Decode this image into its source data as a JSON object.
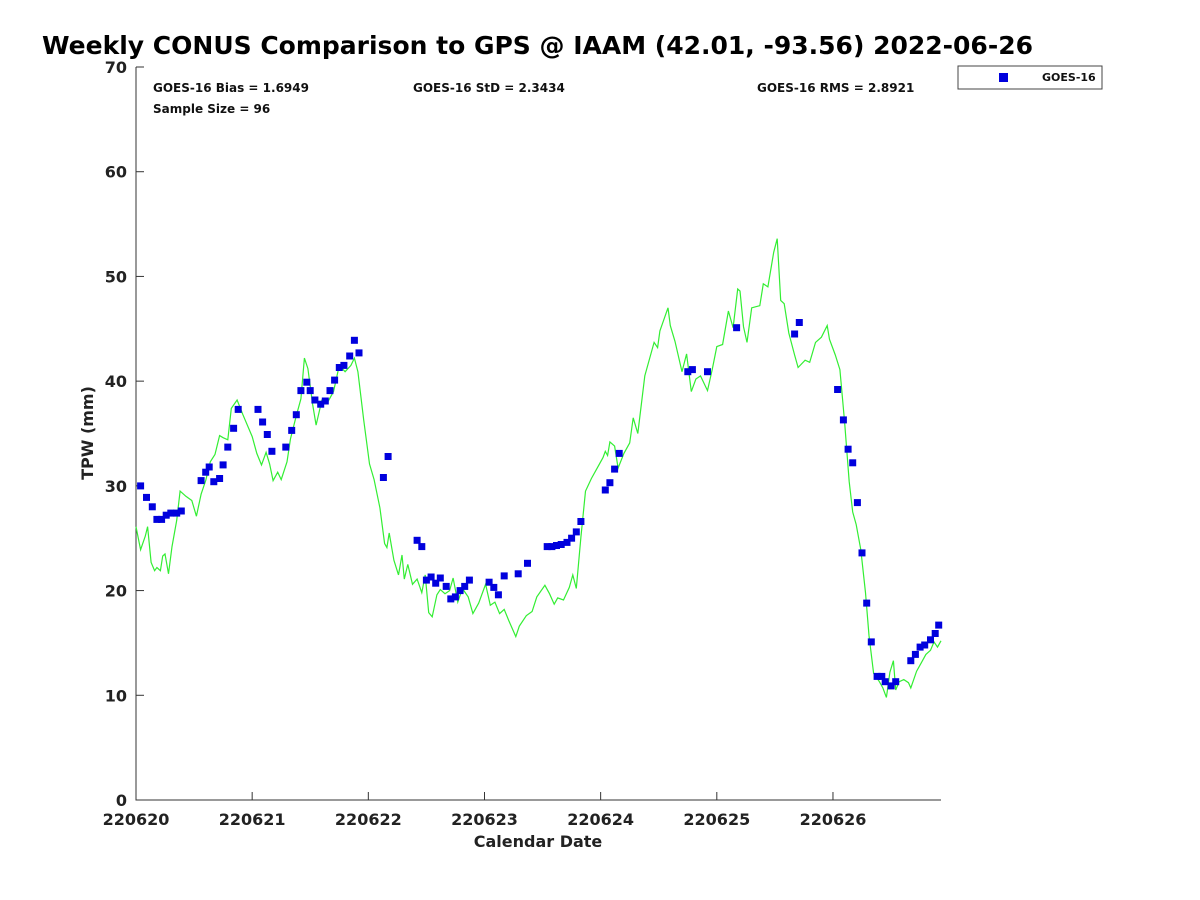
{
  "chart_data": {
    "type": "scatter",
    "title": "Weekly CONUS Comparison to GPS @ IAAM (42.01, -93.56) 2022-06-26",
    "xlabel": "Calendar Date",
    "ylabel": "TPW (mm)",
    "xlim": [
      220620,
      220626.93
    ],
    "ylim": [
      0,
      70
    ],
    "x_ticks": [
      220620,
      220621,
      220622,
      220623,
      220624,
      220625,
      220626
    ],
    "x_tick_labels": [
      "220620",
      "220621",
      "220622",
      "220623",
      "220624",
      "220625",
      "220626"
    ],
    "y_ticks": [
      0,
      10,
      20,
      30,
      40,
      50,
      60,
      70
    ],
    "y_tick_labels": [
      "0",
      "10",
      "20",
      "30",
      "40",
      "50",
      "60",
      "70"
    ],
    "grid": false,
    "legend_position": "top-right-outside",
    "stats": {
      "bias": "GOES-16 Bias = 1.6949",
      "std": "GOES-16 StD = 2.3434",
      "rms": "GOES-16 RMS = 2.8921",
      "sample": "Sample Size = 96"
    },
    "series": [
      {
        "name": "GOES-16",
        "kind": "scatter",
        "color": "#0000dd",
        "marker": "square",
        "points": [
          [
            220620.04,
            30.0
          ],
          [
            220620.09,
            28.9
          ],
          [
            220620.14,
            28.0
          ],
          [
            220620.18,
            26.8
          ],
          [
            220620.22,
            26.8
          ],
          [
            220620.26,
            27.2
          ],
          [
            220620.3,
            27.4
          ],
          [
            220620.35,
            27.4
          ],
          [
            220620.39,
            27.6
          ],
          [
            220620.56,
            30.5
          ],
          [
            220620.6,
            31.3
          ],
          [
            220620.63,
            31.8
          ],
          [
            220620.67,
            30.4
          ],
          [
            220620.72,
            30.7
          ],
          [
            220620.75,
            32.0
          ],
          [
            220620.79,
            33.7
          ],
          [
            220620.84,
            35.5
          ],
          [
            220620.88,
            37.3
          ],
          [
            220621.05,
            37.3
          ],
          [
            220621.09,
            36.1
          ],
          [
            220621.13,
            34.9
          ],
          [
            220621.17,
            33.3
          ],
          [
            220621.29,
            33.7
          ],
          [
            220621.34,
            35.3
          ],
          [
            220621.38,
            36.8
          ],
          [
            220621.42,
            39.1
          ],
          [
            220621.47,
            39.9
          ],
          [
            220621.5,
            39.1
          ],
          [
            220621.54,
            38.2
          ],
          [
            220621.59,
            37.8
          ],
          [
            220621.63,
            38.1
          ],
          [
            220621.67,
            39.1
          ],
          [
            220621.71,
            40.1
          ],
          [
            220621.75,
            41.3
          ],
          [
            220621.79,
            41.5
          ],
          [
            220621.84,
            42.4
          ],
          [
            220621.88,
            43.9
          ],
          [
            220621.92,
            42.7
          ],
          [
            220622.13,
            30.8
          ],
          [
            220622.17,
            32.8
          ],
          [
            220622.42,
            24.8
          ],
          [
            220622.46,
            24.2
          ],
          [
            220622.5,
            21.0
          ],
          [
            220622.54,
            21.3
          ],
          [
            220622.58,
            20.7
          ],
          [
            220622.62,
            21.2
          ],
          [
            220622.67,
            20.4
          ],
          [
            220622.71,
            19.2
          ],
          [
            220622.75,
            19.4
          ],
          [
            220622.79,
            20.0
          ],
          [
            220622.83,
            20.4
          ],
          [
            220622.87,
            21.0
          ],
          [
            220623.04,
            20.8
          ],
          [
            220623.08,
            20.3
          ],
          [
            220623.12,
            19.6
          ],
          [
            220623.17,
            21.4
          ],
          [
            220623.29,
            21.6
          ],
          [
            220623.37,
            22.6
          ],
          [
            220623.54,
            24.2
          ],
          [
            220623.58,
            24.2
          ],
          [
            220623.62,
            24.3
          ],
          [
            220623.66,
            24.4
          ],
          [
            220623.71,
            24.6
          ],
          [
            220623.75,
            25.0
          ],
          [
            220623.79,
            25.6
          ],
          [
            220623.83,
            26.6
          ],
          [
            220624.04,
            29.6
          ],
          [
            220624.08,
            30.3
          ],
          [
            220624.12,
            31.6
          ],
          [
            220624.16,
            33.1
          ],
          [
            220624.75,
            40.9
          ],
          [
            220624.79,
            41.1
          ],
          [
            220624.92,
            40.9
          ],
          [
            220625.17,
            45.1
          ],
          [
            220625.67,
            44.5
          ],
          [
            220625.71,
            45.6
          ],
          [
            220626.04,
            39.2
          ],
          [
            220626.09,
            36.3
          ],
          [
            220626.13,
            33.5
          ],
          [
            220626.17,
            32.2
          ],
          [
            220626.21,
            28.4
          ],
          [
            220626.25,
            23.6
          ],
          [
            220626.29,
            18.8
          ],
          [
            220626.33,
            15.1
          ],
          [
            220626.38,
            11.8
          ],
          [
            220626.42,
            11.8
          ],
          [
            220626.45,
            11.3
          ],
          [
            220626.5,
            10.9
          ],
          [
            220626.54,
            11.3
          ],
          [
            220626.67,
            13.3
          ],
          [
            220626.71,
            13.9
          ],
          [
            220626.75,
            14.6
          ],
          [
            220626.79,
            14.8
          ],
          [
            220626.84,
            15.3
          ],
          [
            220626.88,
            15.9
          ],
          [
            220626.91,
            16.7
          ]
        ]
      },
      {
        "kind": "line",
        "color": "#33ee33",
        "points": [
          [
            220620.0,
            26.1
          ],
          [
            220620.04,
            23.9
          ],
          [
            220620.08,
            25.2
          ],
          [
            220620.1,
            26.1
          ],
          [
            220620.13,
            22.7
          ],
          [
            220620.16,
            21.9
          ],
          [
            220620.18,
            22.2
          ],
          [
            220620.21,
            21.9
          ],
          [
            220620.23,
            23.3
          ],
          [
            220620.25,
            23.5
          ],
          [
            220620.28,
            21.6
          ],
          [
            220620.31,
            24.2
          ],
          [
            220620.35,
            26.7
          ],
          [
            220620.38,
            29.5
          ],
          [
            220620.43,
            29.0
          ],
          [
            220620.48,
            28.6
          ],
          [
            220620.52,
            27.1
          ],
          [
            220620.56,
            29.2
          ],
          [
            220620.6,
            30.5
          ],
          [
            220620.64,
            32.3
          ],
          [
            220620.68,
            33.0
          ],
          [
            220620.72,
            34.8
          ],
          [
            220620.75,
            34.6
          ],
          [
            220620.79,
            34.4
          ],
          [
            220620.82,
            37.4
          ],
          [
            220620.87,
            38.2
          ],
          [
            220620.92,
            36.8
          ],
          [
            220621.0,
            34.7
          ],
          [
            220621.04,
            33.1
          ],
          [
            220621.08,
            32.0
          ],
          [
            220621.12,
            33.2
          ],
          [
            220621.15,
            32.1
          ],
          [
            220621.18,
            30.5
          ],
          [
            220621.22,
            31.3
          ],
          [
            220621.25,
            30.6
          ],
          [
            220621.3,
            32.3
          ],
          [
            220621.33,
            34.5
          ],
          [
            220621.38,
            36.7
          ],
          [
            220621.42,
            38.3
          ],
          [
            220621.45,
            42.2
          ],
          [
            220621.48,
            41.2
          ],
          [
            220621.52,
            37.8
          ],
          [
            220621.55,
            35.8
          ],
          [
            220621.6,
            38.2
          ],
          [
            220621.65,
            38.0
          ],
          [
            220621.7,
            39.0
          ],
          [
            220621.75,
            41.5
          ],
          [
            220621.8,
            40.9
          ],
          [
            220621.85,
            41.5
          ],
          [
            220621.88,
            42.2
          ],
          [
            220621.91,
            40.9
          ],
          [
            220621.96,
            36.3
          ],
          [
            220622.01,
            32.1
          ],
          [
            220622.05,
            30.6
          ],
          [
            220622.1,
            27.9
          ],
          [
            220622.14,
            24.5
          ],
          [
            220622.16,
            24.1
          ],
          [
            220622.18,
            25.5
          ],
          [
            220622.22,
            22.9
          ],
          [
            220622.26,
            21.5
          ],
          [
            220622.29,
            23.4
          ],
          [
            220622.31,
            21.1
          ],
          [
            220622.34,
            22.5
          ],
          [
            220622.38,
            20.6
          ],
          [
            220622.42,
            21.1
          ],
          [
            220622.46,
            19.8
          ],
          [
            220622.49,
            21.5
          ],
          [
            220622.52,
            17.9
          ],
          [
            220622.55,
            17.5
          ],
          [
            220622.59,
            19.6
          ],
          [
            220622.62,
            20.1
          ],
          [
            220622.66,
            19.7
          ],
          [
            220622.7,
            20.0
          ],
          [
            220622.73,
            21.2
          ],
          [
            220622.77,
            18.9
          ],
          [
            220622.81,
            20.2
          ],
          [
            220622.86,
            19.4
          ],
          [
            220622.9,
            17.8
          ],
          [
            220622.95,
            18.8
          ],
          [
            220623.01,
            20.6
          ],
          [
            220623.05,
            18.6
          ],
          [
            220623.09,
            18.9
          ],
          [
            220623.13,
            17.8
          ],
          [
            220623.17,
            18.2
          ],
          [
            220623.21,
            17.1
          ],
          [
            220623.27,
            15.6
          ],
          [
            220623.3,
            16.6
          ],
          [
            220623.36,
            17.6
          ],
          [
            220623.41,
            18.0
          ],
          [
            220623.45,
            19.4
          ],
          [
            220623.52,
            20.5
          ],
          [
            220623.56,
            19.7
          ],
          [
            220623.6,
            18.7
          ],
          [
            220623.63,
            19.3
          ],
          [
            220623.68,
            19.1
          ],
          [
            220623.73,
            20.3
          ],
          [
            220623.76,
            21.5
          ],
          [
            220623.79,
            20.2
          ],
          [
            220623.83,
            25.1
          ],
          [
            220623.87,
            29.5
          ],
          [
            220623.92,
            30.7
          ],
          [
            220623.97,
            31.7
          ],
          [
            220624.02,
            32.7
          ],
          [
            220624.04,
            33.3
          ],
          [
            220624.06,
            32.9
          ],
          [
            220624.08,
            34.2
          ],
          [
            220624.12,
            33.8
          ],
          [
            220624.15,
            31.7
          ],
          [
            220624.2,
            33.1
          ],
          [
            220624.25,
            34.1
          ],
          [
            220624.28,
            36.5
          ],
          [
            220624.32,
            35.0
          ],
          [
            220624.38,
            40.5
          ],
          [
            220624.46,
            43.7
          ],
          [
            220624.49,
            43.2
          ],
          [
            220624.51,
            44.8
          ],
          [
            220624.58,
            47.0
          ],
          [
            220624.6,
            45.3
          ],
          [
            220624.64,
            43.8
          ],
          [
            220624.7,
            40.9
          ],
          [
            220624.74,
            42.6
          ],
          [
            220624.78,
            39.0
          ],
          [
            220624.82,
            40.2
          ],
          [
            220624.86,
            40.5
          ],
          [
            220624.92,
            39.1
          ],
          [
            220624.96,
            41.1
          ],
          [
            220625.0,
            43.3
          ],
          [
            220625.05,
            43.5
          ],
          [
            220625.1,
            46.7
          ],
          [
            220625.14,
            45.1
          ],
          [
            220625.18,
            48.8
          ],
          [
            220625.2,
            48.6
          ],
          [
            220625.23,
            45.2
          ],
          [
            220625.26,
            43.7
          ],
          [
            220625.3,
            47.0
          ],
          [
            220625.37,
            47.2
          ],
          [
            220625.4,
            49.3
          ],
          [
            220625.44,
            49.0
          ],
          [
            220625.49,
            52.3
          ],
          [
            220625.52,
            53.6
          ],
          [
            220625.55,
            47.7
          ],
          [
            220625.58,
            47.4
          ],
          [
            220625.62,
            44.6
          ],
          [
            220625.67,
            42.5
          ],
          [
            220625.7,
            41.3
          ],
          [
            220625.76,
            42.0
          ],
          [
            220625.8,
            41.8
          ],
          [
            220625.85,
            43.7
          ],
          [
            220625.9,
            44.2
          ],
          [
            220625.95,
            45.3
          ],
          [
            220625.97,
            44.0
          ],
          [
            220626.02,
            42.5
          ],
          [
            220626.06,
            41.1
          ],
          [
            220626.1,
            36.1
          ],
          [
            220626.14,
            30.4
          ],
          [
            220626.17,
            27.5
          ],
          [
            220626.2,
            26.3
          ],
          [
            220626.24,
            23.9
          ],
          [
            220626.28,
            19.8
          ],
          [
            220626.31,
            15.7
          ],
          [
            220626.35,
            12.1
          ],
          [
            220626.4,
            11.3
          ],
          [
            220626.43,
            10.7
          ],
          [
            220626.46,
            9.8
          ],
          [
            220626.49,
            12.2
          ],
          [
            220626.52,
            13.3
          ],
          [
            220626.54,
            10.5
          ],
          [
            220626.57,
            11.3
          ],
          [
            220626.61,
            11.5
          ],
          [
            220626.65,
            11.2
          ],
          [
            220626.67,
            10.7
          ],
          [
            220626.72,
            12.3
          ],
          [
            220626.76,
            13.1
          ],
          [
            220626.8,
            13.9
          ],
          [
            220626.84,
            14.3
          ],
          [
            220626.87,
            15.1
          ],
          [
            220626.9,
            14.6
          ],
          [
            220626.93,
            15.2
          ]
        ]
      }
    ]
  }
}
